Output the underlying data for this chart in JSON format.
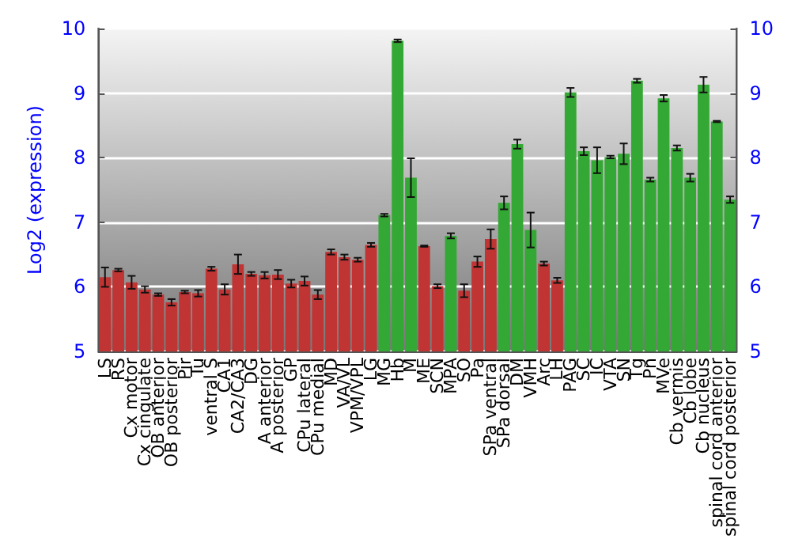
{
  "chart_data": {
    "type": "bar",
    "ylabel": "Log2 (expression)",
    "categories": [
      "LS",
      "RS",
      "Cx motor",
      "Cx cingulate",
      "OB anterior",
      "OB posterior",
      "Pir",
      "Tu",
      "ventral S",
      "CA1",
      "CA2/CA3",
      "DG",
      "A anterior",
      "A posterior",
      "GP",
      "CPu lateral",
      "CPu medial",
      "MD",
      "VA/VL",
      "VPM/VPL",
      "LG",
      "MG",
      "Hb",
      "M",
      "ME",
      "SCN",
      "MPA",
      "SO",
      "Pa",
      "SPa ventral",
      "SPa dorsal",
      "DM",
      "VMH",
      "Arc",
      "LH",
      "PAG",
      "SC",
      "IC",
      "VTA",
      "SN",
      "Tg",
      "Pn",
      "MVe",
      "Cb vermis",
      "Cb lobe",
      "Cb nucleus",
      "spinal cord anterior",
      "spinal cord posterior"
    ],
    "values": [
      6.15,
      6.26,
      6.07,
      5.96,
      5.88,
      5.76,
      5.92,
      5.9,
      6.28,
      5.96,
      6.35,
      6.2,
      6.18,
      6.19,
      6.05,
      6.09,
      5.88,
      6.54,
      6.46,
      6.42,
      6.65,
      7.11,
      9.81,
      7.69,
      6.63,
      6.01,
      6.79,
      5.94,
      6.39,
      6.74,
      7.3,
      8.21,
      6.88,
      6.36,
      6.1,
      9.01,
      8.1,
      7.96,
      8.01,
      8.06,
      9.19,
      7.66,
      8.92,
      8.15,
      7.69,
      9.13,
      8.56,
      7.35
    ],
    "errors": [
      0.15,
      0.02,
      0.1,
      0.05,
      0.02,
      0.05,
      0.02,
      0.05,
      0.03,
      0.08,
      0.15,
      0.03,
      0.05,
      0.07,
      0.06,
      0.07,
      0.07,
      0.04,
      0.04,
      0.03,
      0.03,
      0.02,
      0.02,
      0.3,
      0.01,
      0.03,
      0.04,
      0.1,
      0.08,
      0.15,
      0.1,
      0.07,
      0.27,
      0.03,
      0.04,
      0.07,
      0.06,
      0.2,
      0.02,
      0.16,
      0.03,
      0.03,
      0.05,
      0.04,
      0.06,
      0.12,
      0.01,
      0.05
    ],
    "colors": [
      "#c03434",
      "#c03434",
      "#c03434",
      "#c03434",
      "#c03434",
      "#c03434",
      "#c03434",
      "#c03434",
      "#c03434",
      "#c03434",
      "#c03434",
      "#c03434",
      "#c03434",
      "#c03434",
      "#c03434",
      "#c03434",
      "#c03434",
      "#c03434",
      "#c03434",
      "#c03434",
      "#c03434",
      "#34a834",
      "#34a834",
      "#34a834",
      "#c03434",
      "#c03434",
      "#34a834",
      "#c03434",
      "#c03434",
      "#c03434",
      "#34a834",
      "#34a834",
      "#34a834",
      "#c03434",
      "#c03434",
      "#34a834",
      "#34a834",
      "#34a834",
      "#34a834",
      "#34a834",
      "#34a834",
      "#34a834",
      "#34a834",
      "#34a834",
      "#34a834",
      "#34a834",
      "#34a834",
      "#34a834"
    ],
    "ylim": [
      5,
      10
    ],
    "yticks": [
      5,
      6,
      7,
      8,
      9,
      10
    ],
    "y2lim": [
      5,
      10
    ],
    "y2ticks": [
      5,
      6,
      7,
      8,
      9,
      10
    ],
    "grid": "y"
  }
}
